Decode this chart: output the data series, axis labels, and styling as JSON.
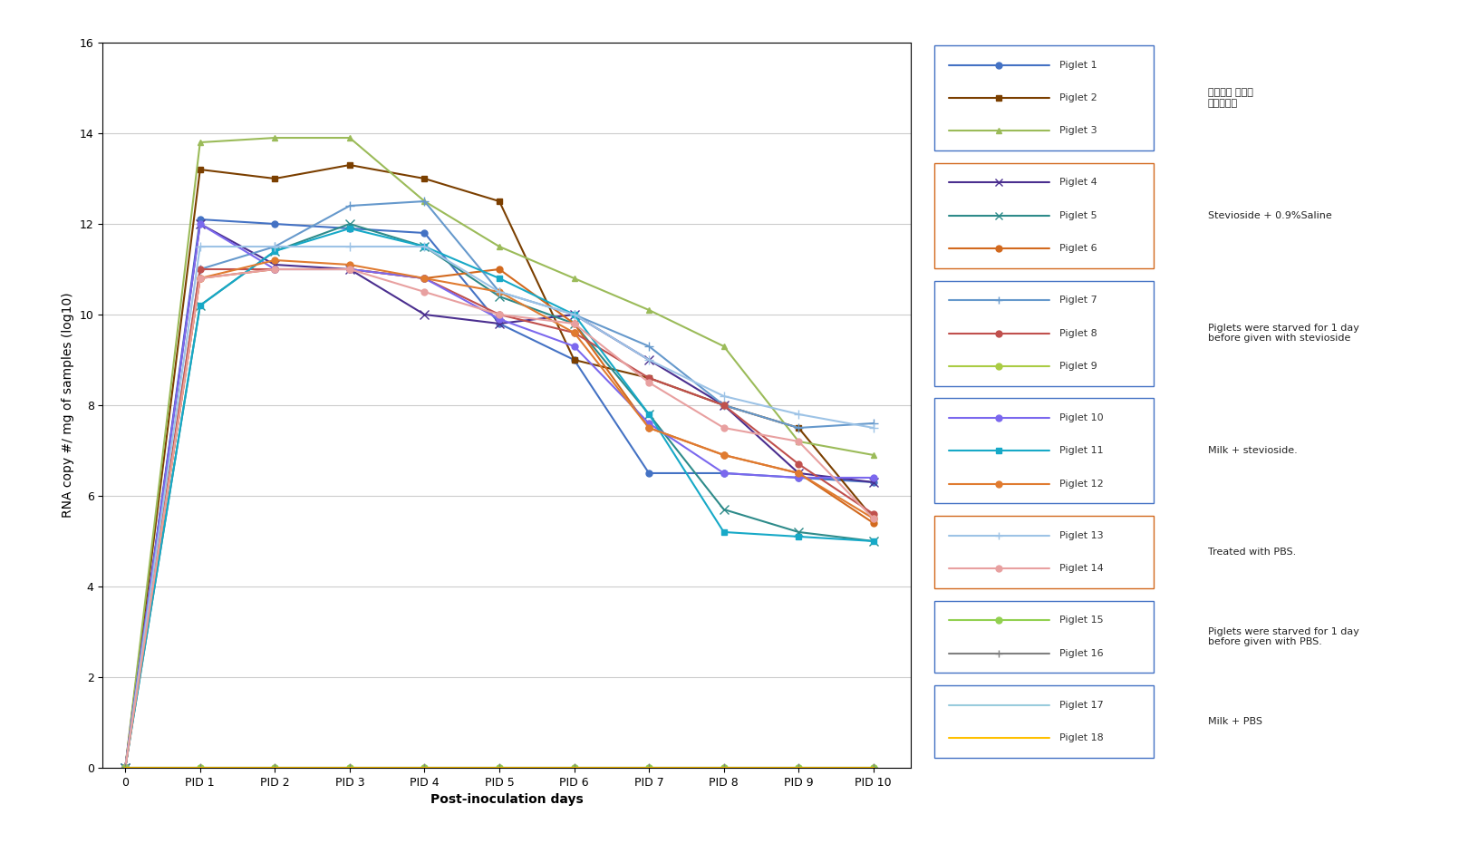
{
  "x_labels": [
    "0",
    "PID 1",
    "PID 2",
    "PID 3",
    "PID 4",
    "PID 5",
    "PID 6",
    "PID 7",
    "PID 8",
    "PID 9",
    "PID 10"
  ],
  "x_vals": [
    0,
    1,
    2,
    3,
    4,
    5,
    6,
    7,
    8,
    9,
    10
  ],
  "ylabel": "RNA copy #/ mg of samples (log10)",
  "xlabel": "Post-inoculation days",
  "ylim": [
    0,
    16
  ],
  "yticks": [
    0,
    2,
    4,
    6,
    8,
    10,
    12,
    14,
    16
  ],
  "piglet_data": {
    "Piglet 1": {
      "color": "#4472C4",
      "marker": "o",
      "values": [
        0,
        12.1,
        12.0,
        11.9,
        11.8,
        9.8,
        9.0,
        6.5,
        6.5,
        6.4,
        6.3
      ]
    },
    "Piglet 2": {
      "color": "#7B3F00",
      "marker": "s",
      "values": [
        0,
        13.2,
        13.0,
        13.3,
        13.0,
        12.5,
        9.0,
        8.6,
        8.0,
        7.5,
        5.5
      ]
    },
    "Piglet 3": {
      "color": "#9BBB59",
      "marker": "^",
      "values": [
        0,
        13.8,
        13.9,
        13.9,
        12.5,
        11.5,
        10.8,
        10.1,
        9.3,
        7.2,
        6.9
      ]
    },
    "Piglet 4": {
      "color": "#4B2F8F",
      "marker": "x",
      "values": [
        0,
        12.0,
        11.1,
        11.0,
        10.0,
        9.8,
        10.0,
        9.0,
        8.0,
        6.5,
        6.3
      ]
    },
    "Piglet 5": {
      "color": "#2E8B8A",
      "marker": "x",
      "values": [
        0,
        10.2,
        11.4,
        12.0,
        11.5,
        10.4,
        9.8,
        7.8,
        5.7,
        5.2,
        5.0
      ]
    },
    "Piglet 6": {
      "color": "#D2691E",
      "marker": "o",
      "values": [
        0,
        10.8,
        11.0,
        11.0,
        10.8,
        11.0,
        9.8,
        7.5,
        6.9,
        6.5,
        5.4
      ]
    },
    "Piglet 7": {
      "color": "#6699CC",
      "marker": "+",
      "values": [
        0,
        11.0,
        11.5,
        12.4,
        12.5,
        10.5,
        10.0,
        9.3,
        8.0,
        7.5,
        7.6
      ]
    },
    "Piglet 8": {
      "color": "#C0504D",
      "marker": "o",
      "values": [
        0,
        11.0,
        11.0,
        11.0,
        10.8,
        10.0,
        9.6,
        8.6,
        8.0,
        6.7,
        5.6
      ]
    },
    "Piglet 9": {
      "color": "#AACC44",
      "marker": "o",
      "values": [
        0,
        0,
        0,
        0,
        0,
        0,
        0,
        0,
        0,
        0,
        0
      ]
    },
    "Piglet 10": {
      "color": "#7B68EE",
      "marker": "o",
      "values": [
        0,
        12.0,
        11.0,
        11.0,
        10.8,
        9.9,
        9.3,
        7.6,
        6.5,
        6.4,
        6.4
      ]
    },
    "Piglet 11": {
      "color": "#17A9C7",
      "marker": "s",
      "values": [
        0,
        10.2,
        11.4,
        11.9,
        11.5,
        10.8,
        10.0,
        7.8,
        5.2,
        5.1,
        5.0
      ]
    },
    "Piglet 12": {
      "color": "#E07B30",
      "marker": "o",
      "values": [
        0,
        10.8,
        11.2,
        11.1,
        10.8,
        10.5,
        9.6,
        7.5,
        6.9,
        6.5,
        5.5
      ]
    },
    "Piglet 13": {
      "color": "#9DC3E6",
      "marker": "+",
      "values": [
        0,
        11.5,
        11.5,
        11.5,
        11.5,
        10.5,
        10.0,
        9.0,
        8.2,
        7.8,
        7.5
      ]
    },
    "Piglet 14": {
      "color": "#E8A0A0",
      "marker": "o",
      "values": [
        0,
        10.8,
        11.0,
        11.0,
        10.5,
        10.0,
        9.8,
        8.5,
        7.5,
        7.2,
        5.5
      ]
    },
    "Piglet 15": {
      "color": "#92D050",
      "marker": "o",
      "values": [
        0,
        0,
        0,
        0,
        0,
        0,
        0,
        0,
        0,
        0,
        0
      ]
    },
    "Piglet 16": {
      "color": "#808080",
      "marker": "+",
      "values": [
        0,
        0,
        0,
        0,
        0,
        0,
        0,
        0,
        0,
        0,
        0
      ]
    },
    "Piglet 17": {
      "color": "#99CCDD",
      "marker": "none",
      "values": [
        0,
        0,
        0,
        0,
        0,
        0,
        0,
        0,
        0,
        0,
        0
      ]
    },
    "Piglet 18": {
      "color": "#FFC000",
      "marker": "none",
      "values": [
        0,
        0,
        0,
        0,
        0,
        0,
        0,
        0,
        0,
        0,
        0
      ]
    }
  },
  "legend_groups": [
    {
      "piglets": [
        "Piglet 1",
        "Piglet 2",
        "Piglet 3"
      ],
      "label": "바이러스 무접종\n음성대조군",
      "box_color": "#4472C4"
    },
    {
      "piglets": [
        "Piglet 4",
        "Piglet 5",
        "Piglet 6"
      ],
      "label": "Stevioside + 0.9%Saline",
      "box_color": "#D2691E"
    },
    {
      "piglets": [
        "Piglet 7",
        "Piglet 8",
        "Piglet 9"
      ],
      "label": "Piglets were starved for 1 day\nbefore given with stevioside",
      "box_color": "#4472C4"
    },
    {
      "piglets": [
        "Piglet 10",
        "Piglet 11",
        "Piglet 12"
      ],
      "label": "Milk + stevioside.",
      "box_color": "#4472C4"
    },
    {
      "piglets": [
        "Piglet 13",
        "Piglet 14"
      ],
      "label": "Treated with PBS.",
      "box_color": "#D2691E"
    },
    {
      "piglets": [
        "Piglet 15",
        "Piglet 16"
      ],
      "label": "Piglets were starved for 1 day\nbefore given with PBS.",
      "box_color": "#4472C4"
    },
    {
      "piglets": [
        "Piglet 17",
        "Piglet 18"
      ],
      "label": "Milk + PBS",
      "box_color": "#4472C4"
    }
  ],
  "background_color": "#FFFFFF",
  "grid_color": "#CCCCCC",
  "tick_fontsize": 9,
  "label_fontsize": 10,
  "legend_fontsize": 8
}
